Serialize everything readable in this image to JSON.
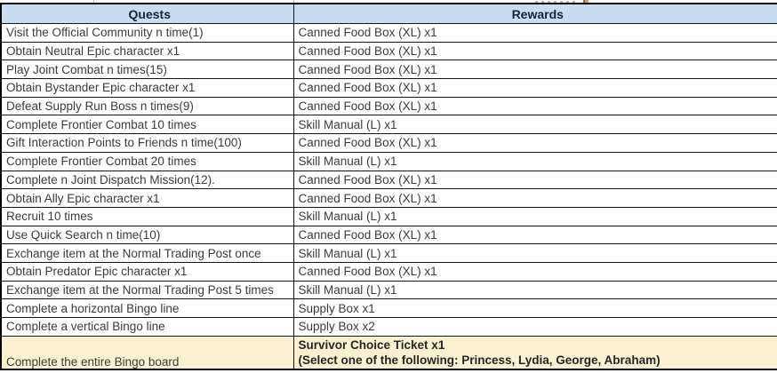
{
  "table": {
    "headers": {
      "quests": "Quests",
      "rewards": "Rewards"
    },
    "rows": [
      {
        "quest": "Visit the Official Community n time(1)",
        "reward": "Canned Food Box (XL) x1"
      },
      {
        "quest": "Obtain Neutral Epic character x1",
        "reward": "Canned Food Box (XL) x1"
      },
      {
        "quest": "Play Joint Combat n times(15)",
        "reward": "Canned Food Box (XL) x1"
      },
      {
        "quest": "Obtain Bystander Epic character x1",
        "reward": "Canned Food Box (XL) x1"
      },
      {
        "quest": "Defeat Supply Run Boss n times(9)",
        "reward": "Canned Food Box (XL) x1"
      },
      {
        "quest": "Complete Frontier Combat 10 times",
        "reward": "Skill Manual (L) x1"
      },
      {
        "quest": "Gift Interaction Points to Friends n time(100)",
        "reward": "Canned Food Box (XL) x1"
      },
      {
        "quest": "Complete Frontier Combat 20 times",
        "reward": "Skill Manual (L) x1"
      },
      {
        "quest": "Complete n Joint Dispatch Mission(12).",
        "reward": "Canned Food Box (XL) x1"
      },
      {
        "quest": "Obtain Ally Epic character x1",
        "reward": "Canned Food Box (XL) x1"
      },
      {
        "quest": "Recruit 10 times",
        "reward": "Skill Manual (L) x1"
      },
      {
        "quest": "Use Quick Search n time(10)",
        "reward": "Canned Food Box (XL) x1"
      },
      {
        "quest": "Exchange item at the Normal Trading Post once",
        "reward": "Skill Manual (L) x1"
      },
      {
        "quest": "Obtain Predator Epic character x1",
        "reward": "Canned Food Box (XL) x1"
      },
      {
        "quest": "Exchange item at the Normal Trading Post 5 times",
        "reward": "Skill Manual (L) x1"
      },
      {
        "quest": "Complete a horizontal Bingo line",
        "reward": "Supply Box x1"
      },
      {
        "quest": "Complete a vertical Bingo line",
        "reward": "Supply Box x2"
      }
    ],
    "final_row": {
      "quest": "Complete the entire Bingo board",
      "reward_line1": "Survivor Choice Ticket x1",
      "reward_line2": "(Select one of the following: Princess, Lydia, George, Abraham)"
    },
    "colors": {
      "header_bg": "#C9DDF0",
      "header_text": "#16243A",
      "highlight_bg": "#FBF0D0",
      "body_text": "#3C3C3C",
      "strong_text": "#262626",
      "border": "#151515"
    }
  }
}
